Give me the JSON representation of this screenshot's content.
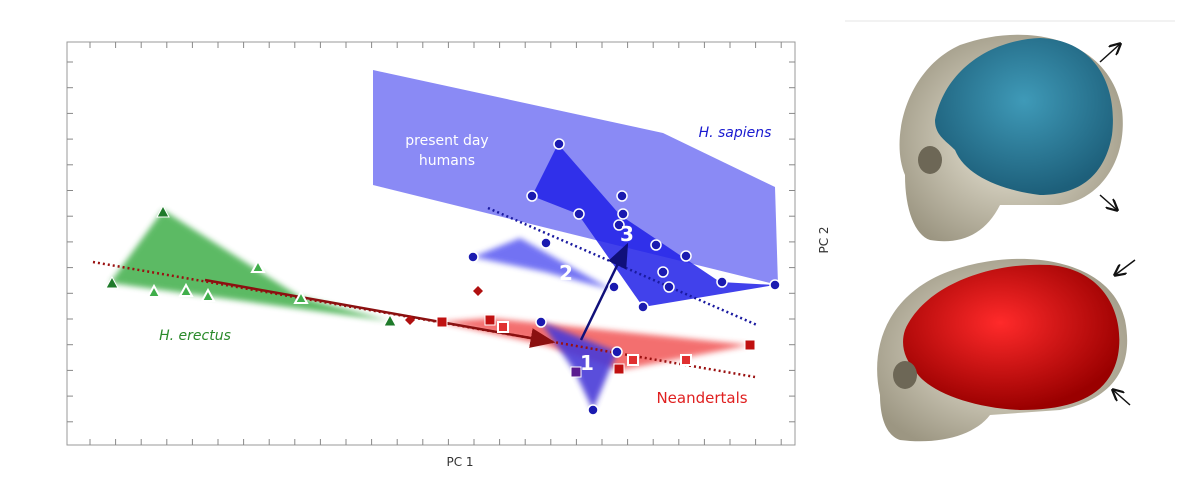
{
  "figure": {
    "plot": {
      "x_label": "PC 1",
      "y_label": "PC 2",
      "group_labels": [
        "present day humans",
        "H. sapiens",
        "H. erectus",
        "Neandertals"
      ],
      "stage_labels": [
        "1",
        "2",
        "3"
      ]
    }
  }
}
